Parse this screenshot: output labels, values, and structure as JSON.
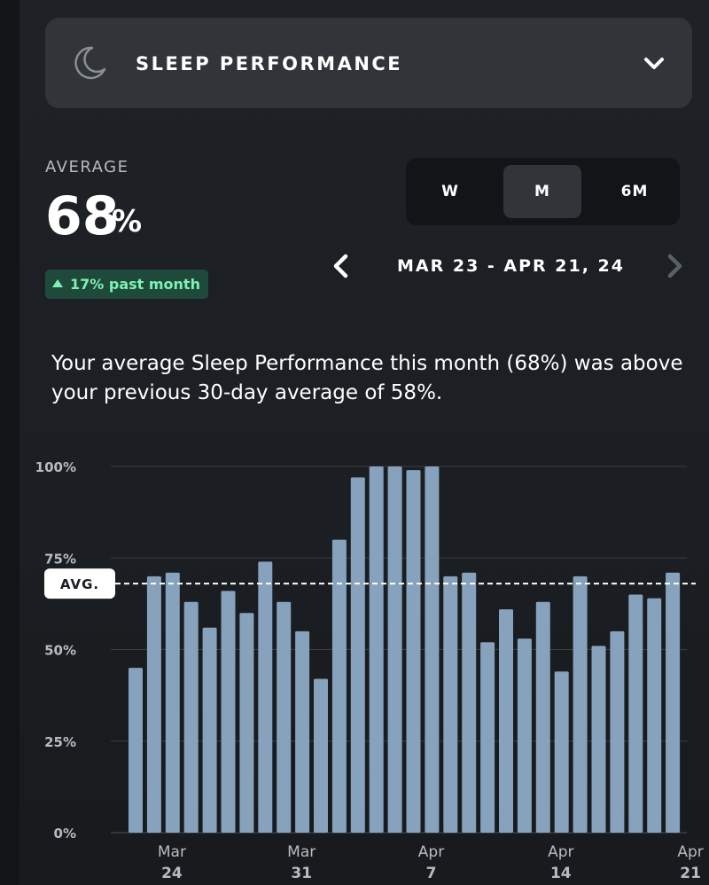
{
  "header": {
    "title": "SLEEP PERFORMANCE",
    "icon": "moon-icon",
    "expand_icon": "chevron-down-icon"
  },
  "stats": {
    "average_label": "AVERAGE",
    "average_value": "68",
    "average_unit": "%",
    "trend_text": "17% past month",
    "trend_color": "#7ff0b5"
  },
  "range_selector": {
    "options": [
      "W",
      "M",
      "6M"
    ],
    "selected": "M"
  },
  "date_nav": {
    "range": "MAR 23 - APR 21, 24"
  },
  "summary": "Your average Sleep Performance this month (68%) was above your previous 30-day average of 58%.",
  "chart_data": {
    "type": "bar",
    "categories": [
      "Mar 23",
      "Mar 24",
      "Mar 25",
      "Mar 26",
      "Mar 27",
      "Mar 28",
      "Mar 29",
      "Mar 30",
      "Mar 31",
      "Apr 1",
      "Apr 2",
      "Apr 3",
      "Apr 4",
      "Apr 5",
      "Apr 6",
      "Apr 7",
      "Apr 8",
      "Apr 9",
      "Apr 10",
      "Apr 11",
      "Apr 12",
      "Apr 13",
      "Apr 14",
      "Apr 15",
      "Apr 16",
      "Apr 17",
      "Apr 18",
      "Apr 19",
      "Apr 20",
      "Apr 21"
    ],
    "values": [
      45,
      70,
      71,
      63,
      56,
      66,
      60,
      74,
      63,
      55,
      42,
      80,
      97,
      100,
      100,
      99,
      100,
      70,
      71,
      52,
      61,
      53,
      63,
      44,
      70,
      51,
      55,
      65,
      64,
      71
    ],
    "yticks": [
      "100%",
      "75%",
      "50%",
      "25%",
      "0%"
    ],
    "ytick_values": [
      100,
      75,
      50,
      25,
      0
    ],
    "xtick_labels": [
      {
        "month": "Mar",
        "day": "24",
        "index": 1
      },
      {
        "month": "Mar",
        "day": "31",
        "index": 8
      },
      {
        "month": "Apr",
        "day": "7",
        "index": 15
      },
      {
        "month": "Apr",
        "day": "14",
        "index": 22
      },
      {
        "month": "Apr",
        "day": "21",
        "index": 29
      }
    ],
    "average": 68,
    "average_label": "AVG.",
    "ylim": [
      0,
      100
    ],
    "bar_color": "#86a2bc",
    "grid": true
  }
}
